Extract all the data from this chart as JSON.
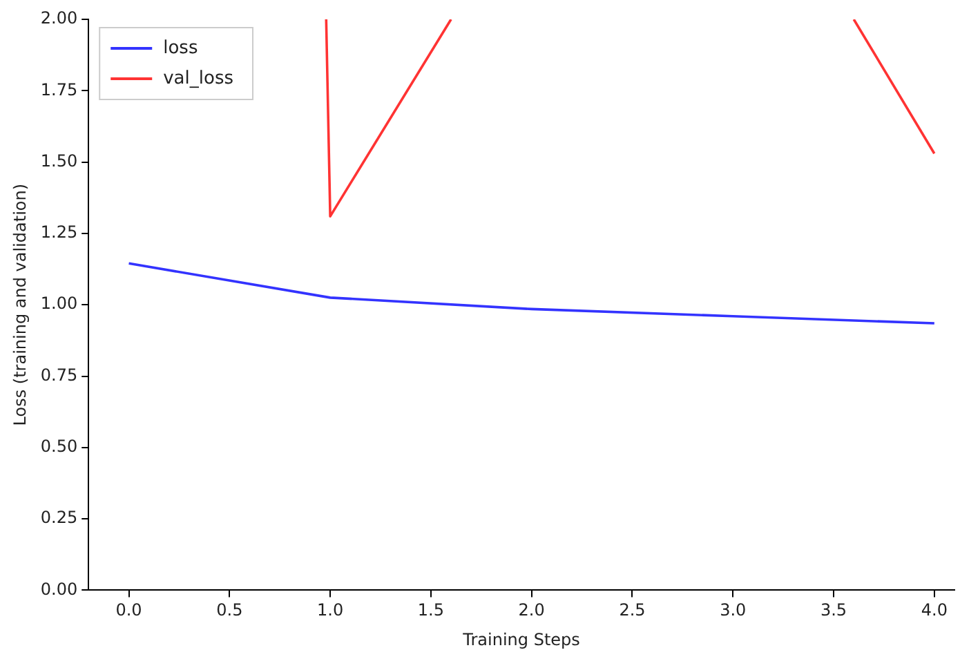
{
  "chart_data": {
    "type": "line",
    "xlabel": "Training Steps",
    "ylabel": "Loss (training and validation)",
    "x": [
      0,
      1,
      2,
      3,
      4
    ],
    "series": [
      {
        "name": "loss",
        "color": "#3333ff",
        "values": [
          1.145,
          1.025,
          0.985,
          0.96,
          0.935
        ]
      },
      {
        "name": "val_loss",
        "color": "#ff3333",
        "x": [
          0.98,
          1,
          1.6,
          null,
          3.6,
          4
        ],
        "values": [
          2,
          1.31,
          2,
          null,
          2,
          1.53
        ]
      }
    ],
    "xlim": [
      -0.2,
      4.1
    ],
    "xticks": [
      {
        "value": 0,
        "label": "0.0"
      },
      {
        "value": 0.5,
        "label": "0.5"
      },
      {
        "value": 1,
        "label": "1.0"
      },
      {
        "value": 1.5,
        "label": "1.5"
      },
      {
        "value": 2,
        "label": "2.0"
      },
      {
        "value": 2.5,
        "label": "2.5"
      },
      {
        "value": 3,
        "label": "3.0"
      },
      {
        "value": 3.5,
        "label": "3.5"
      },
      {
        "value": 4,
        "label": "4.0"
      }
    ],
    "ylim": [
      0,
      2
    ],
    "yticks": [
      {
        "value": 0,
        "label": "0.00"
      },
      {
        "value": 0.25,
        "label": "0.25"
      },
      {
        "value": 0.5,
        "label": "0.50"
      },
      {
        "value": 0.75,
        "label": "0.75"
      },
      {
        "value": 1,
        "label": "1.00"
      },
      {
        "value": 1.25,
        "label": "1.25"
      },
      {
        "value": 1.5,
        "label": "1.50"
      },
      {
        "value": 1.75,
        "label": "1.75"
      },
      {
        "value": 2,
        "label": "2.00"
      }
    ],
    "grid": false,
    "legend": "top left",
    "marker": "none",
    "line_style": "solid"
  }
}
